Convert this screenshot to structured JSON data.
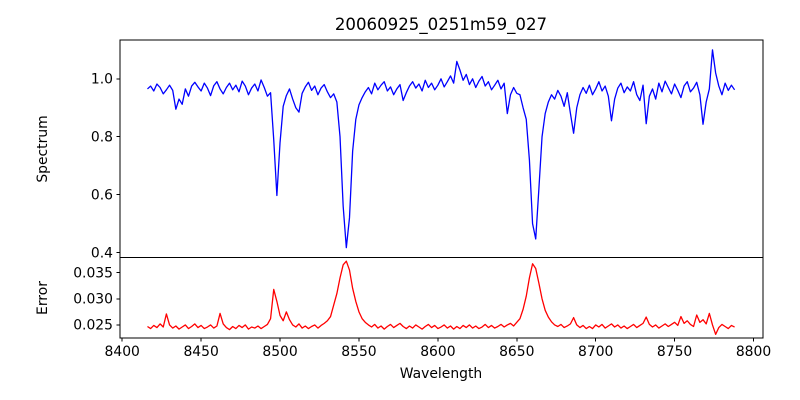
{
  "chart_data": {
    "type": "line",
    "title": "20060925_0251m59_027",
    "xlabel": "Wavelength",
    "xlim": [
      8398.6,
      8806.0
    ],
    "xticks": [
      8400,
      8450,
      8500,
      8550,
      8600,
      8650,
      8700,
      8750,
      8800
    ],
    "xtick_labels": [
      "8400",
      "8450",
      "8500",
      "8550",
      "8600",
      "8650",
      "8700",
      "8750",
      "8800"
    ],
    "grid": false,
    "legend": "none",
    "background": "#ffffff",
    "x": [
      8416,
      8418,
      8420,
      8422,
      8424,
      8426,
      8428,
      8430,
      8432,
      8434,
      8436,
      8438,
      8440,
      8442,
      8444,
      8446,
      8448,
      8450,
      8452,
      8454,
      8456,
      8458,
      8460,
      8462,
      8464,
      8466,
      8468,
      8470,
      8472,
      8474,
      8476,
      8478,
      8480,
      8482,
      8484,
      8486,
      8488,
      8490,
      8492,
      8494,
      8496,
      8498,
      8500,
      8502,
      8504,
      8506,
      8508,
      8510,
      8512,
      8514,
      8516,
      8518,
      8520,
      8522,
      8524,
      8526,
      8528,
      8530,
      8532,
      8534,
      8536,
      8538,
      8540,
      8542,
      8544,
      8546,
      8548,
      8550,
      8552,
      8554,
      8556,
      8558,
      8560,
      8562,
      8564,
      8566,
      8568,
      8570,
      8572,
      8574,
      8576,
      8578,
      8580,
      8582,
      8584,
      8586,
      8588,
      8590,
      8592,
      8594,
      8596,
      8598,
      8600,
      8602,
      8604,
      8606,
      8608,
      8610,
      8612,
      8614,
      8616,
      8618,
      8620,
      8622,
      8624,
      8626,
      8628,
      8630,
      8632,
      8634,
      8636,
      8638,
      8640,
      8642,
      8644,
      8646,
      8648,
      8650,
      8652,
      8654,
      8656,
      8658,
      8660,
      8662,
      8664,
      8666,
      8668,
      8670,
      8672,
      8674,
      8676,
      8678,
      8680,
      8682,
      8684,
      8686,
      8688,
      8690,
      8692,
      8694,
      8696,
      8698,
      8700,
      8702,
      8704,
      8706,
      8708,
      8710,
      8712,
      8714,
      8716,
      8718,
      8720,
      8722,
      8724,
      8726,
      8728,
      8730,
      8732,
      8734,
      8736,
      8738,
      8740,
      8742,
      8744,
      8746,
      8748,
      8750,
      8752,
      8754,
      8756,
      8758,
      8760,
      8762,
      8764,
      8766,
      8768,
      8770,
      8772,
      8774,
      8776,
      8778,
      8780,
      8782,
      8784,
      8786,
      8788
    ],
    "panels": [
      {
        "ylabel": "Spectrum",
        "ylim": [
          0.383,
          1.134
        ],
        "yticks": [
          1.0,
          0.8,
          0.6,
          0.4
        ],
        "ytick_labels": [
          "1.0",
          "0.8",
          "0.6",
          "0.4"
        ],
        "series": [
          {
            "name": "spectrum",
            "color": "#0000ff",
            "absorption_line_centers": [
              8498,
              8542,
              8662
            ],
            "y": [
              0.965,
              0.975,
              0.958,
              0.982,
              0.97,
              0.948,
              0.962,
              0.978,
              0.96,
              0.895,
              0.93,
              0.912,
              0.965,
              0.94,
              0.975,
              0.988,
              0.972,
              0.958,
              0.985,
              0.968,
              0.942,
              0.976,
              0.99,
              0.965,
              0.948,
              0.97,
              0.985,
              0.962,
              0.978,
              0.955,
              0.992,
              0.975,
              0.945,
              0.968,
              0.982,
              0.958,
              0.996,
              0.97,
              0.94,
              0.952,
              0.79,
              0.597,
              0.78,
              0.905,
              0.942,
              0.965,
              0.93,
              0.9,
              0.885,
              0.95,
              0.972,
              0.988,
              0.96,
              0.975,
              0.945,
              0.968,
              0.98,
              0.955,
              0.935,
              0.948,
              0.92,
              0.8,
              0.56,
              0.417,
              0.52,
              0.75,
              0.86,
              0.91,
              0.935,
              0.955,
              0.97,
              0.948,
              0.985,
              0.962,
              0.978,
              0.99,
              0.958,
              0.972,
              0.945,
              0.965,
              0.98,
              0.925,
              0.952,
              0.975,
              0.99,
              0.968,
              0.982,
              0.958,
              0.995,
              0.97,
              0.985,
              0.962,
              0.978,
              1.0,
              0.972,
              0.99,
              1.01,
              0.985,
              1.06,
              1.03,
              0.995,
              1.015,
              0.98,
              1.0,
              0.97,
              0.992,
              1.008,
              0.975,
              0.99,
              0.962,
              0.978,
              0.995,
              0.965,
              0.985,
              0.88,
              0.945,
              0.97,
              0.95,
              0.945,
              0.9,
              0.86,
              0.72,
              0.5,
              0.447,
              0.62,
              0.8,
              0.88,
              0.92,
              0.945,
              0.93,
              0.96,
              0.94,
              0.905,
              0.952,
              0.88,
              0.812,
              0.9,
              0.945,
              0.97,
              0.95,
              0.978,
              0.945,
              0.965,
              0.99,
              0.958,
              0.975,
              0.94,
              0.855,
              0.93,
              0.968,
              0.985,
              0.952,
              0.972,
              0.958,
              0.99,
              0.945,
              0.925,
              0.978,
              0.845,
              0.94,
              0.965,
              0.93,
              0.985,
              0.955,
              0.992,
              0.97,
              0.948,
              0.982,
              0.96,
              0.935,
              0.975,
              0.99,
              0.955,
              0.968,
              0.988,
              0.945,
              0.843,
              0.92,
              0.965,
              1.1,
              1.02,
              0.975,
              0.945,
              0.985,
              0.96,
              0.978,
              0.962
            ]
          }
        ]
      },
      {
        "ylabel": "Error",
        "ylim": [
          0.0225,
          0.0379
        ],
        "yticks": [
          0.035,
          0.03,
          0.025
        ],
        "ytick_labels": [
          "0.035",
          "0.030",
          "0.025"
        ],
        "series": [
          {
            "name": "error",
            "color": "#ff0000",
            "peak_centers": [
              8496,
              8542,
              8660
            ],
            "y": [
              0.0247,
              0.0243,
              0.0249,
              0.0245,
              0.0252,
              0.0246,
              0.0271,
              0.025,
              0.0244,
              0.0248,
              0.0242,
              0.0246,
              0.025,
              0.0243,
              0.0247,
              0.0252,
              0.0245,
              0.0249,
              0.0243,
              0.0246,
              0.025,
              0.0244,
              0.0248,
              0.0272,
              0.0252,
              0.0245,
              0.0241,
              0.0247,
              0.0243,
              0.0249,
              0.0245,
              0.025,
              0.0242,
              0.0246,
              0.0244,
              0.0248,
              0.0243,
              0.0247,
              0.0251,
              0.0262,
              0.0318,
              0.0295,
              0.0268,
              0.0258,
              0.0275,
              0.026,
              0.025,
              0.0246,
              0.0252,
              0.0244,
              0.0248,
              0.0243,
              0.0247,
              0.025,
              0.0244,
              0.0249,
              0.0253,
              0.0258,
              0.0266,
              0.0288,
              0.031,
              0.034,
              0.0365,
              0.0372,
              0.0355,
              0.032,
              0.0295,
              0.0275,
              0.0262,
              0.0255,
              0.025,
              0.0246,
              0.0251,
              0.0244,
              0.0248,
              0.0242,
              0.0247,
              0.0251,
              0.0245,
              0.0249,
              0.0253,
              0.0247,
              0.0243,
              0.0248,
              0.0244,
              0.025,
              0.0246,
              0.0242,
              0.0247,
              0.0251,
              0.0245,
              0.0249,
              0.0243,
              0.0246,
              0.025,
              0.0244,
              0.0248,
              0.0242,
              0.0247,
              0.0243,
              0.0249,
              0.0245,
              0.025,
              0.0244,
              0.0248,
              0.0243,
              0.0246,
              0.0251,
              0.0245,
              0.0249,
              0.0244,
              0.0247,
              0.0251,
              0.0246,
              0.025,
              0.0253,
              0.0248,
              0.0255,
              0.0262,
              0.028,
              0.0305,
              0.034,
              0.0367,
              0.0358,
              0.033,
              0.03,
              0.0278,
              0.0265,
              0.0256,
              0.025,
              0.0247,
              0.0251,
              0.0245,
              0.0248,
              0.0252,
              0.0264,
              0.025,
              0.0245,
              0.0249,
              0.0243,
              0.0247,
              0.0243,
              0.025,
              0.0246,
              0.0251,
              0.0244,
              0.0248,
              0.0252,
              0.0246,
              0.025,
              0.0244,
              0.0248,
              0.0243,
              0.0247,
              0.0251,
              0.0245,
              0.0249,
              0.0253,
              0.0265,
              0.0251,
              0.0246,
              0.025,
              0.0244,
              0.0248,
              0.0252,
              0.0247,
              0.0251,
              0.0255,
              0.0249,
              0.0266,
              0.0253,
              0.0258,
              0.0251,
              0.0247,
              0.0269,
              0.0255,
              0.026,
              0.0252,
              0.0272,
              0.025,
              0.0232,
              0.0245,
              0.0251,
              0.0247,
              0.0243,
              0.0249,
              0.0246
            ]
          }
        ]
      }
    ]
  }
}
